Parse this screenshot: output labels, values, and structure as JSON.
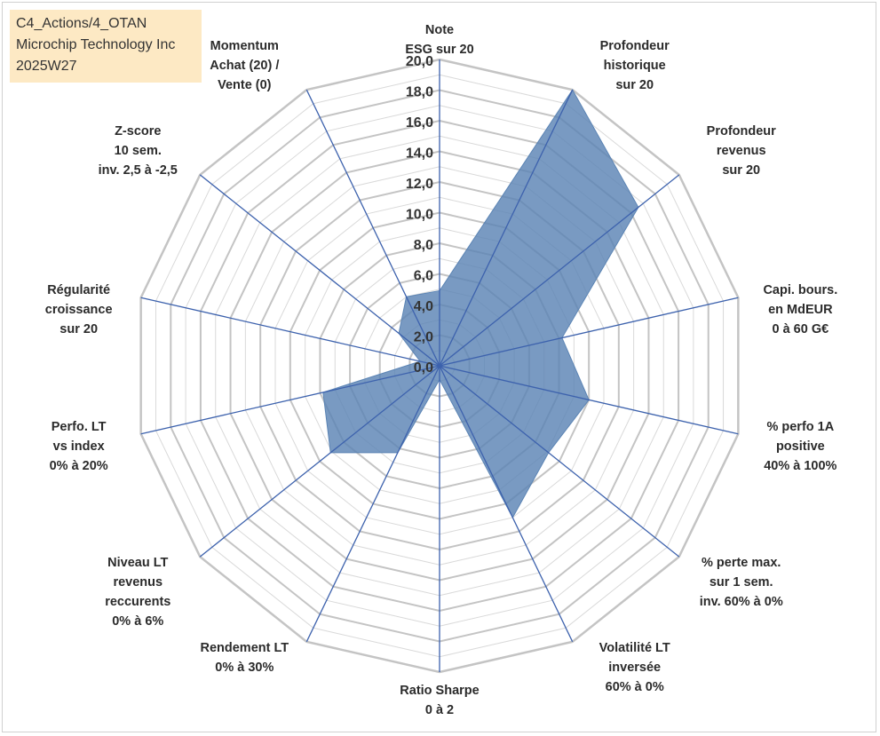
{
  "header": {
    "line1": "C4_Actions/4_OTAN",
    "line2": "Microchip Technology Inc",
    "line3": "2025W27"
  },
  "colors": {
    "fill": "#5b84b4",
    "fill_opacity": 0.82,
    "spoke": "#3d62ad",
    "grid": "#c4c4c4",
    "grid_minor": "#d9d9d9"
  },
  "chart_data": {
    "type": "radar",
    "title": "",
    "rlim": [
      0,
      20
    ],
    "major_ticks": [
      "0,0",
      "2,0",
      "4,0",
      "6,0",
      "8,0",
      "10,0",
      "12,0",
      "14,0",
      "16,0",
      "18,0",
      "20,0"
    ],
    "grid": true,
    "legend": "none",
    "categories": [
      [
        "Note",
        "ESG sur 20"
      ],
      [
        "Profondeur",
        "historique",
        "sur 20"
      ],
      [
        "Profondeur",
        "revenus",
        "sur 20"
      ],
      [
        "Capi. bours.",
        "en MdEUR",
        "0 à 60 G€"
      ],
      [
        "% perfo 1A",
        "positive",
        "40% à 100%"
      ],
      [
        "% perte max.",
        "sur 1 sem.",
        "inv. 60% à 0%"
      ],
      [
        "Volatilité LT",
        "inversée",
        "60% à 0%"
      ],
      [
        "Ratio Sharpe",
        "0 à 2"
      ],
      [
        "Rendement LT",
        "0% à 30%"
      ],
      [
        "Niveau LT",
        "revenus",
        "reccurents",
        "0% à 6%"
      ],
      [
        "Perfo. LT",
        "vs index",
        "0% à 20%"
      ],
      [
        "Régularité",
        "croissance",
        "sur 20"
      ],
      [
        "Z-score",
        "10 sem.",
        "inv. 2,5 à -2,5"
      ],
      [
        "Momentum",
        "Achat (20) /",
        "Vente (0)"
      ]
    ],
    "values": [
      4.9,
      20.0,
      16.6,
      8.2,
      10.0,
      9.1,
      11.0,
      0.9,
      6.3,
      9.1,
      7.8,
      1.3,
      3.4,
      5.0
    ]
  }
}
